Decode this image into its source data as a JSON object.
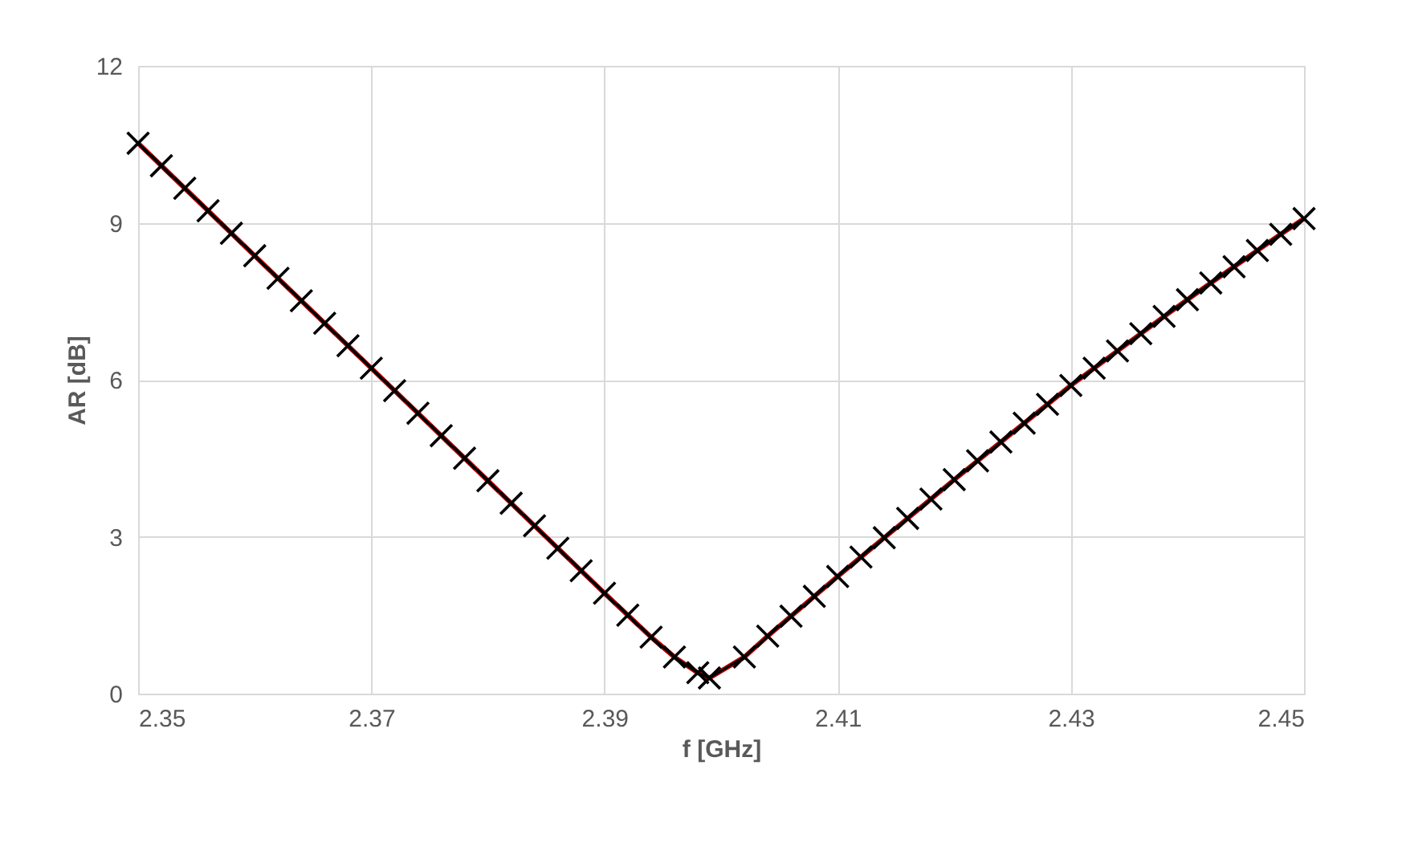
{
  "chart_data": {
    "type": "line",
    "xlabel": "f [GHz]",
    "ylabel": "AR [dB]",
    "x": [
      2.35,
      2.352,
      2.354,
      2.356,
      2.358,
      2.36,
      2.362,
      2.364,
      2.366,
      2.368,
      2.37,
      2.372,
      2.374,
      2.376,
      2.378,
      2.38,
      2.382,
      2.384,
      2.386,
      2.388,
      2.39,
      2.392,
      2.394,
      2.396,
      2.398,
      2.399,
      2.402,
      2.404,
      2.406,
      2.408,
      2.41,
      2.412,
      2.414,
      2.416,
      2.418,
      2.42,
      2.422,
      2.424,
      2.426,
      2.428,
      2.43,
      2.432,
      2.434,
      2.436,
      2.438,
      2.44,
      2.442,
      2.444,
      2.446,
      2.448,
      2.45
    ],
    "series": [
      {
        "color": "#c00000",
        "marker": "none",
        "values": [
          10.52,
          10.09,
          9.66,
          9.23,
          8.8,
          8.37,
          7.94,
          7.51,
          7.08,
          6.65,
          6.22,
          5.79,
          5.36,
          4.93,
          4.5,
          4.07,
          3.64,
          3.21,
          2.78,
          2.35,
          1.92,
          1.5,
          1.08,
          0.7,
          0.4,
          0.3,
          0.7,
          1.1,
          1.48,
          1.86,
          2.24,
          2.61,
          2.98,
          3.35,
          3.72,
          4.09,
          4.45,
          4.81,
          5.17,
          5.53,
          5.89,
          6.22,
          6.55,
          6.88,
          7.21,
          7.53,
          7.85,
          8.16,
          8.47,
          8.78,
          9.08
        ]
      },
      {
        "color": "#000000",
        "marker": "cross",
        "values": [
          10.52,
          10.09,
          9.66,
          9.23,
          8.8,
          8.37,
          7.94,
          7.51,
          7.08,
          6.65,
          6.22,
          5.79,
          5.36,
          4.93,
          4.5,
          4.07,
          3.64,
          3.21,
          2.78,
          2.35,
          1.92,
          1.5,
          1.08,
          0.7,
          0.4,
          0.3,
          0.7,
          1.1,
          1.48,
          1.86,
          2.24,
          2.61,
          2.98,
          3.35,
          3.72,
          4.09,
          4.45,
          4.81,
          5.17,
          5.53,
          5.89,
          6.22,
          6.55,
          6.88,
          7.21,
          7.53,
          7.85,
          8.16,
          8.47,
          8.78,
          9.08
        ]
      }
    ],
    "xlim": [
      2.35,
      2.45
    ],
    "xticks": [
      2.35,
      2.37,
      2.39,
      2.41,
      2.43,
      2.45
    ],
    "ylim": [
      0,
      12
    ],
    "yticks": [
      0,
      3,
      6,
      9,
      12
    ],
    "grid": true,
    "line_style": "solid"
  }
}
